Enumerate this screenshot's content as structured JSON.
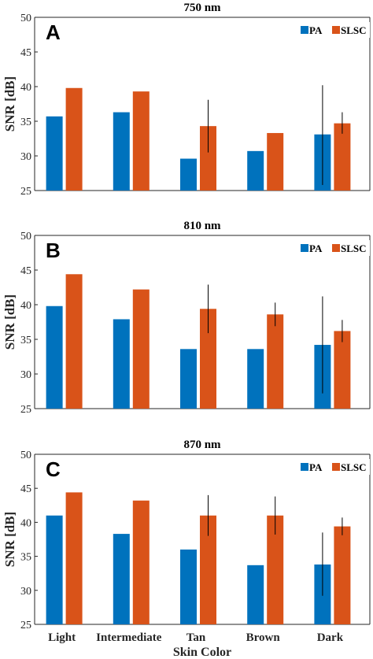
{
  "colors": {
    "PA": "#0072BD",
    "SLSC": "#D95319"
  },
  "shared": {
    "categories": [
      "Light",
      "Intermediate",
      "Tan",
      "Brown",
      "Dark"
    ],
    "xlabel": "Skin Color",
    "ylabel": "SNR [dB]",
    "legend": [
      "PA",
      "SLSC"
    ]
  },
  "chart_data": [
    {
      "type": "bar",
      "panel_label": "A",
      "title": "750 nm",
      "ylim": [
        25,
        50
      ],
      "yticks": [
        25,
        30,
        35,
        40,
        45,
        50
      ],
      "series": [
        {
          "name": "PA",
          "values": [
            35.7,
            36.3,
            29.6,
            30.7,
            33.1
          ],
          "err_low": [
            null,
            null,
            null,
            null,
            25.8
          ],
          "err_high": [
            null,
            null,
            null,
            null,
            40.2
          ]
        },
        {
          "name": "SLSC",
          "values": [
            39.8,
            39.3,
            34.3,
            33.3,
            34.7
          ],
          "err_low": [
            null,
            null,
            30.5,
            null,
            33.2
          ],
          "err_high": [
            null,
            null,
            38.1,
            null,
            36.3
          ]
        }
      ]
    },
    {
      "type": "bar",
      "panel_label": "B",
      "title": "810 nm",
      "ylim": [
        25,
        50
      ],
      "yticks": [
        25,
        30,
        35,
        40,
        45,
        50
      ],
      "series": [
        {
          "name": "PA",
          "values": [
            39.8,
            37.9,
            33.6,
            33.6,
            34.2
          ],
          "err_low": [
            null,
            null,
            null,
            null,
            27.2
          ],
          "err_high": [
            null,
            null,
            null,
            null,
            41.2
          ]
        },
        {
          "name": "SLSC",
          "values": [
            44.4,
            42.2,
            39.4,
            38.6,
            36.2
          ],
          "err_low": [
            null,
            null,
            35.9,
            36.9,
            34.6
          ],
          "err_high": [
            null,
            null,
            42.9,
            40.3,
            37.8
          ]
        }
      ]
    },
    {
      "type": "bar",
      "panel_label": "C",
      "title": "870 nm",
      "ylim": [
        25,
        50
      ],
      "yticks": [
        25,
        30,
        35,
        40,
        45,
        50
      ],
      "series": [
        {
          "name": "PA",
          "values": [
            41.0,
            38.3,
            36.0,
            33.7,
            33.8
          ],
          "err_low": [
            null,
            null,
            null,
            null,
            29.2
          ],
          "err_high": [
            null,
            null,
            null,
            null,
            38.5
          ]
        },
        {
          "name": "SLSC",
          "values": [
            44.4,
            43.2,
            41.0,
            41.0,
            39.4
          ],
          "err_low": [
            null,
            null,
            38.0,
            38.2,
            38.1
          ],
          "err_high": [
            null,
            null,
            44.0,
            43.8,
            40.7
          ]
        }
      ]
    }
  ]
}
